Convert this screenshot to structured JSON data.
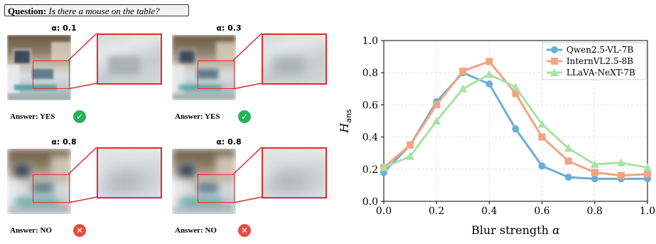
{
  "question": {
    "label": "Question:",
    "text": "Is there a mouse on the table?"
  },
  "panels": [
    {
      "alpha": "α: 0.1",
      "answer": "Answer: YES",
      "result": "correct",
      "result_icon": "check-icon"
    },
    {
      "alpha": "α: 0.3",
      "answer": "Answer: YES",
      "result": "correct",
      "result_icon": "check-icon"
    },
    {
      "alpha": "α: 0.8",
      "answer": "Answer: NO",
      "result": "wrong",
      "result_icon": "cross-icon"
    },
    {
      "alpha": "α: 0.8",
      "answer": "Answer: NO",
      "result": "wrong",
      "result_icon": "cross-icon"
    }
  ],
  "colors": {
    "highlight": "#e22b2b",
    "correct": "#27b15a",
    "wrong": "#e84b3c"
  },
  "chart_data": {
    "type": "line",
    "xlabel": "Blur strength α",
    "ylabel": "H_ans",
    "xlim": [
      0.0,
      1.0
    ],
    "ylim": [
      0.0,
      1.0
    ],
    "xticks": [
      "0.0",
      "0.2",
      "0.4",
      "0.6",
      "0.8",
      "1.0"
    ],
    "yticks": [
      "0.0",
      "0.2",
      "0.4",
      "0.6",
      "0.8",
      "1.0"
    ],
    "grid": true,
    "legend_position": "top-right",
    "series": [
      {
        "name": "Qwen2.5-VL-7B",
        "color": "#6aaed6",
        "marker": "circle",
        "x": [
          0.0,
          0.1,
          0.2,
          0.3,
          0.4,
          0.5,
          0.6,
          0.7,
          0.8,
          0.9,
          1.0
        ],
        "y": [
          0.18,
          0.35,
          0.62,
          0.8,
          0.73,
          0.45,
          0.22,
          0.15,
          0.14,
          0.14,
          0.14
        ]
      },
      {
        "name": "InternVL2.5-8B",
        "color": "#f4a37f",
        "marker": "square",
        "x": [
          0.0,
          0.1,
          0.2,
          0.3,
          0.4,
          0.5,
          0.6,
          0.7,
          0.8,
          0.9,
          1.0
        ],
        "y": [
          0.21,
          0.35,
          0.6,
          0.81,
          0.87,
          0.67,
          0.4,
          0.25,
          0.18,
          0.16,
          0.17
        ]
      },
      {
        "name": "LLaVA-NeXT-7B",
        "color": "#a7e3a2",
        "marker": "triangle",
        "x": [
          0.0,
          0.1,
          0.2,
          0.3,
          0.4,
          0.5,
          0.6,
          0.7,
          0.8,
          0.9,
          1.0
        ],
        "y": [
          0.21,
          0.28,
          0.5,
          0.7,
          0.79,
          0.71,
          0.48,
          0.33,
          0.23,
          0.24,
          0.21
        ]
      }
    ]
  }
}
